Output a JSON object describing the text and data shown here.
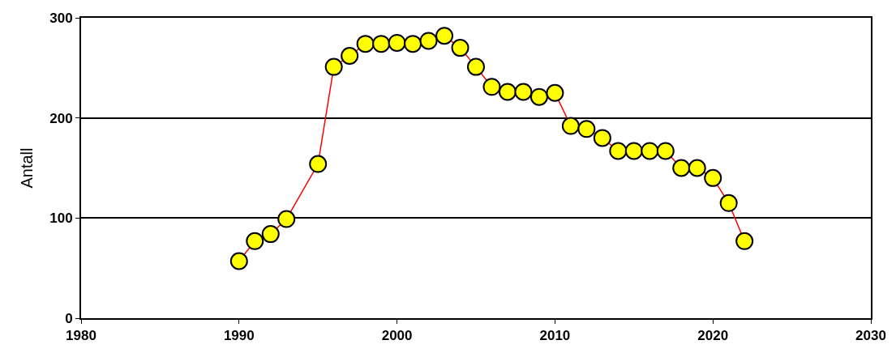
{
  "chart_data": {
    "type": "line",
    "ylabel": "Antall",
    "x": [
      1990,
      1991,
      1992,
      1993,
      1995,
      1996,
      1997,
      1998,
      1999,
      2000,
      2001,
      2002,
      2003,
      2004,
      2005,
      2006,
      2007,
      2008,
      2009,
      2010,
      2011,
      2012,
      2013,
      2014,
      2015,
      2016,
      2017,
      2018,
      2019,
      2020,
      2021,
      2022
    ],
    "series": [
      {
        "color": "#ff0000",
        "colors": [
          "#ffff00",
          "#ffff00",
          "#ffff00",
          "#ffff00",
          "#ffff00",
          "#ffff00",
          "#ffff00",
          "#ffff00",
          "#ffff00",
          "#ffff00",
          "#ffff00",
          "#ffff00",
          "#ffff00",
          "#ffff00",
          "#ffff00",
          "#ffff00",
          "#ffff00",
          "#ffff00",
          "#ffff00",
          "#ffff00",
          "#ffff00",
          "#ffff00",
          "#ffff00",
          "#ffff00",
          "#ffff00",
          "#ffff00",
          "#ffff00",
          "#ffff00",
          "#ffff00",
          "#ffff00",
          "#ffff00",
          "#ffff00"
        ],
        "values": [
          57,
          77,
          84,
          99,
          154,
          251,
          262,
          274,
          274,
          275,
          274,
          277,
          282,
          270,
          251,
          231,
          226,
          226,
          221,
          225,
          192,
          189,
          180,
          167,
          167,
          167,
          167,
          150,
          150,
          140,
          115,
          77
        ]
      }
    ],
    "xlim": [
      1980,
      2030
    ],
    "xticks": [
      1980,
      1990,
      2000,
      2010,
      2020,
      2030
    ],
    "ylim": [
      0,
      300
    ],
    "yticks": [
      0,
      100,
      200,
      300
    ],
    "grid": "y",
    "marker": "circle",
    "line_style": "solid"
  }
}
